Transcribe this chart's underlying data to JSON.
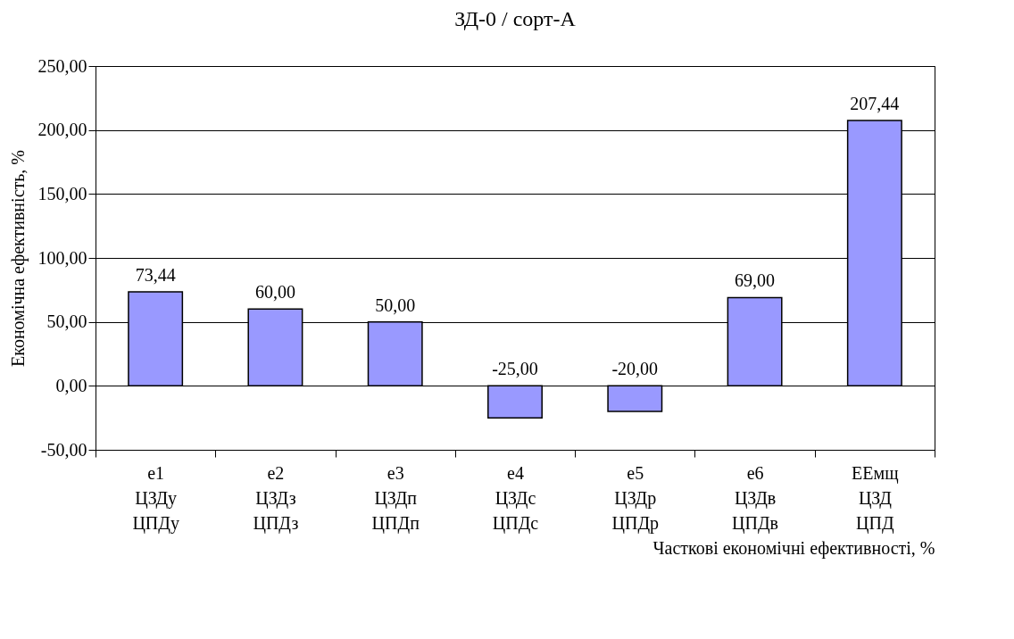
{
  "chart_data": {
    "type": "bar",
    "title": "ЗД-0 / сорт-А",
    "xlabel": "Часткові економічні ефективності, %",
    "ylabel": "Економічна ефективність, %",
    "categories": [
      "e1\nЦЗДу\nЦПДу",
      "e2\nЦЗДз\nЦПДз",
      "e3\nЦЗДп\nЦПДп",
      "e4\nЦЗДс\nЦПДс",
      "e5\nЦЗДр\nЦПДр",
      "e6\nЦЗДв\nЦПДв",
      "ЕЕмщ\nЦЗД\nЦПД"
    ],
    "values": [
      73.44,
      60,
      50,
      -25,
      -20,
      69,
      207.44
    ],
    "value_labels": [
      "73,44",
      "60,00",
      "50,00",
      "-25,00",
      "-20,00",
      "69,00",
      "207,44"
    ],
    "color": "#9999ff",
    "ylim": [
      -50,
      250
    ],
    "yticks": [
      {
        "value": -50,
        "label": "-50,00"
      },
      {
        "value": 0,
        "label": "0,00"
      },
      {
        "value": 50,
        "label": "50,00"
      },
      {
        "value": 100,
        "label": "100,00"
      },
      {
        "value": 150,
        "label": "150,00"
      },
      {
        "value": 200,
        "label": "200,00"
      },
      {
        "value": 250,
        "label": "250,00"
      }
    ],
    "grid": "y"
  }
}
